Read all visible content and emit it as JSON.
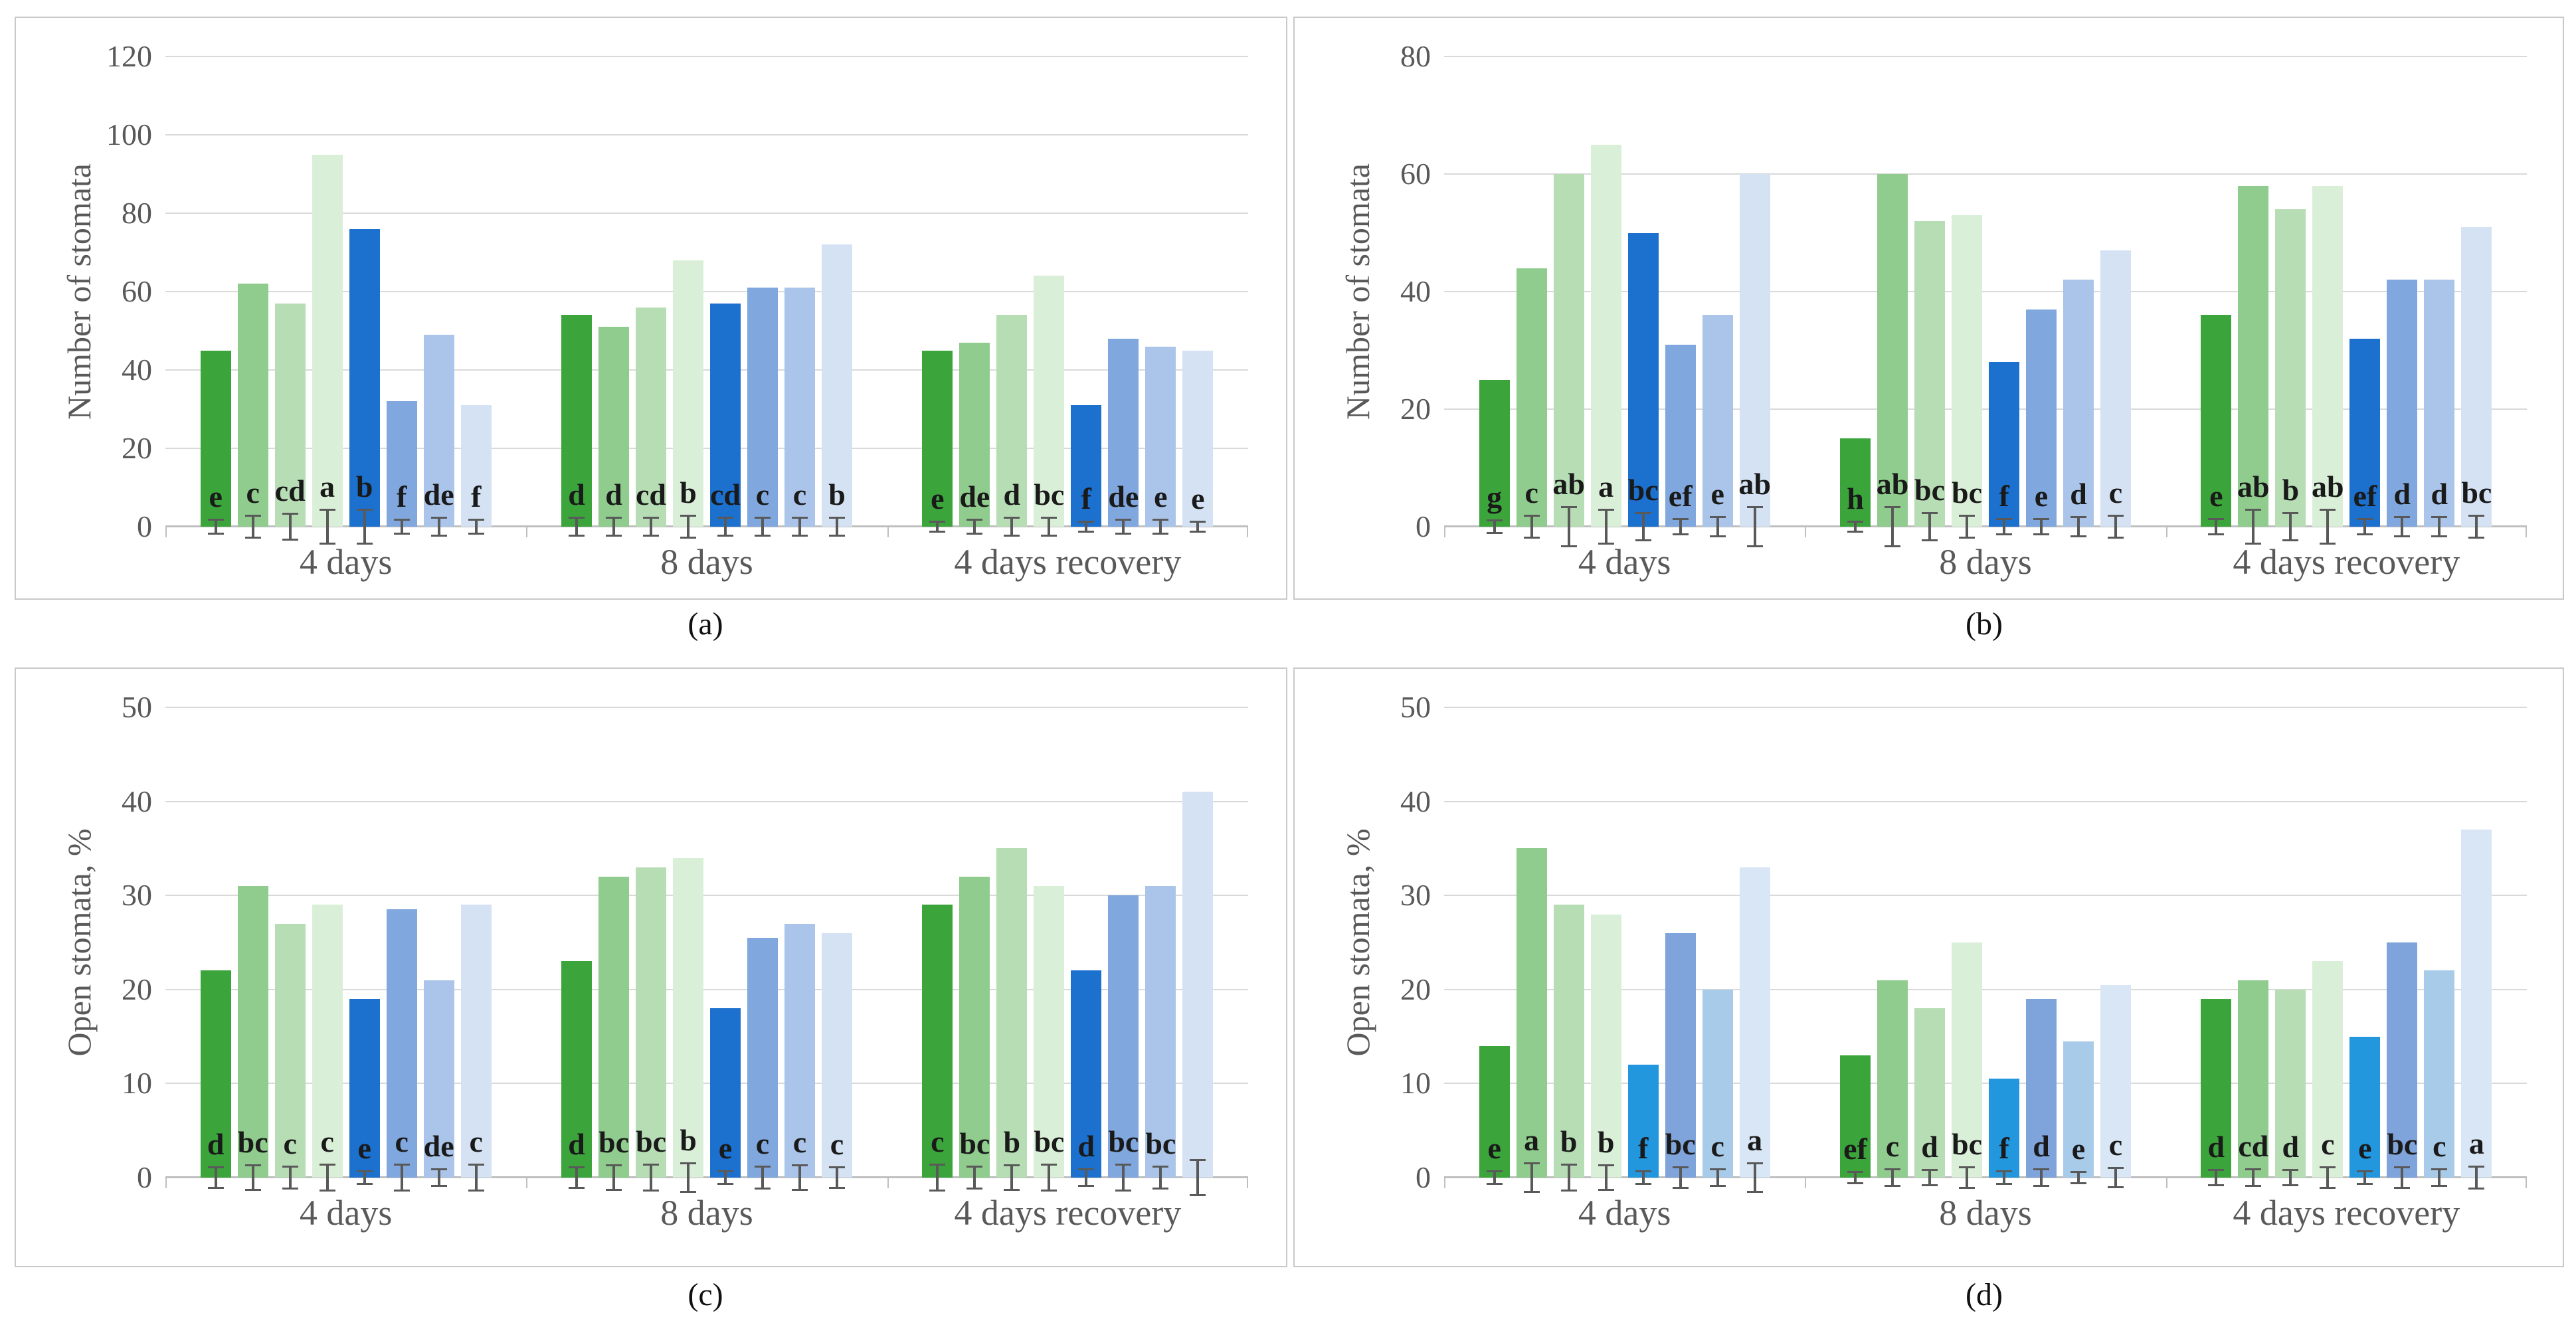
{
  "figure": {
    "background": "#ffffff",
    "grid_color": "#d9d9d9",
    "axis_color": "#bfbfbf",
    "error_bar_color": "#595959"
  },
  "chart_data": [
    {
      "id": "a",
      "caption": "(a)",
      "type": "bar",
      "ylabel": "Number of stomata",
      "xlabel": "",
      "ylim": [
        0,
        120
      ],
      "yticks": [
        0,
        20,
        40,
        60,
        80,
        100,
        120
      ],
      "grid": true,
      "legend": "none",
      "categories": [
        "4 days",
        "8 days",
        "4 days recovery"
      ],
      "bar_colors": [
        "#3ba53b",
        "#8fcc8d",
        "#b7ddb5",
        "#daefd8",
        "#1c70ce",
        "#80a8de",
        "#aac5e9",
        "#d4e2f4"
      ],
      "groups": [
        {
          "category": "4 days",
          "bars": [
            {
              "value": 45,
              "err": 2,
              "letter": "e"
            },
            {
              "value": 62,
              "err": 3,
              "letter": "c"
            },
            {
              "value": 57,
              "err": 3.5,
              "letter": "cd"
            },
            {
              "value": 95,
              "err": 4.5,
              "letter": "a"
            },
            {
              "value": 76,
              "err": 4.5,
              "letter": "b"
            },
            {
              "value": 32,
              "err": 2,
              "letter": "f"
            },
            {
              "value": 49,
              "err": 2.5,
              "letter": "de"
            },
            {
              "value": 31,
              "err": 2,
              "letter": "f"
            }
          ]
        },
        {
          "category": "8 days",
          "bars": [
            {
              "value": 54,
              "err": 2.5,
              "letter": "d"
            },
            {
              "value": 51,
              "err": 2.5,
              "letter": "d"
            },
            {
              "value": 56,
              "err": 2.5,
              "letter": "cd"
            },
            {
              "value": 68,
              "err": 3,
              "letter": "b"
            },
            {
              "value": 57,
              "err": 2.5,
              "letter": "cd"
            },
            {
              "value": 61,
              "err": 2.5,
              "letter": "c"
            },
            {
              "value": 61,
              "err": 2.5,
              "letter": "c"
            },
            {
              "value": 72,
              "err": 2.5,
              "letter": "b"
            }
          ]
        },
        {
          "category": "4 days recovery",
          "bars": [
            {
              "value": 45,
              "err": 1.5,
              "letter": "e"
            },
            {
              "value": 47,
              "err": 2,
              "letter": "de"
            },
            {
              "value": 54,
              "err": 2.5,
              "letter": "d"
            },
            {
              "value": 64,
              "err": 2.5,
              "letter": "bc"
            },
            {
              "value": 31,
              "err": 1.5,
              "letter": "f"
            },
            {
              "value": 48,
              "err": 2,
              "letter": "de"
            },
            {
              "value": 46,
              "err": 2,
              "letter": "e"
            },
            {
              "value": 45,
              "err": 1.5,
              "letter": "e"
            }
          ]
        }
      ]
    },
    {
      "id": "b",
      "caption": "(b)",
      "type": "bar",
      "ylabel": "Number of stomata",
      "xlabel": "",
      "ylim": [
        0,
        80
      ],
      "yticks": [
        0,
        20,
        40,
        60,
        80
      ],
      "grid": true,
      "legend": "none",
      "categories": [
        "4 days",
        "8 days",
        "4 days recovery"
      ],
      "bar_colors": [
        "#3ba53b",
        "#8fcc8d",
        "#b7ddb5",
        "#daefd8",
        "#1c70ce",
        "#80a8de",
        "#aac5e9",
        "#d4e2f4"
      ],
      "groups": [
        {
          "category": "4 days",
          "bars": [
            {
              "value": 25,
              "err": 1.2,
              "letter": "g"
            },
            {
              "value": 44,
              "err": 2,
              "letter": "c"
            },
            {
              "value": 60,
              "err": 3.5,
              "letter": "ab"
            },
            {
              "value": 65,
              "err": 3,
              "letter": "a"
            },
            {
              "value": 50,
              "err": 2.5,
              "letter": "bc"
            },
            {
              "value": 31,
              "err": 1.5,
              "letter": "ef"
            },
            {
              "value": 36,
              "err": 1.8,
              "letter": "e"
            },
            {
              "value": 60,
              "err": 3.5,
              "letter": "ab"
            }
          ]
        },
        {
          "category": "8 days",
          "bars": [
            {
              "value": 15,
              "err": 1,
              "letter": "h"
            },
            {
              "value": 60,
              "err": 3.5,
              "letter": "ab"
            },
            {
              "value": 52,
              "err": 2.5,
              "letter": "bc"
            },
            {
              "value": 53,
              "err": 2,
              "letter": "bc"
            },
            {
              "value": 28,
              "err": 1.5,
              "letter": "f"
            },
            {
              "value": 37,
              "err": 1.5,
              "letter": "e"
            },
            {
              "value": 42,
              "err": 1.8,
              "letter": "d"
            },
            {
              "value": 47,
              "err": 2,
              "letter": "c"
            }
          ]
        },
        {
          "category": "4 days recovery",
          "bars": [
            {
              "value": 36,
              "err": 1.5,
              "letter": "e"
            },
            {
              "value": 58,
              "err": 3,
              "letter": "ab"
            },
            {
              "value": 54,
              "err": 2.5,
              "letter": "b"
            },
            {
              "value": 58,
              "err": 3,
              "letter": "ab"
            },
            {
              "value": 32,
              "err": 1.5,
              "letter": "ef"
            },
            {
              "value": 42,
              "err": 1.8,
              "letter": "d"
            },
            {
              "value": 42,
              "err": 1.8,
              "letter": "d"
            },
            {
              "value": 51,
              "err": 2,
              "letter": "bc"
            }
          ]
        }
      ]
    },
    {
      "id": "c",
      "caption": "(c)",
      "type": "bar",
      "ylabel": "Open stomata, %",
      "xlabel": "",
      "ylim": [
        0,
        50
      ],
      "yticks": [
        0,
        10,
        20,
        30,
        40,
        50
      ],
      "grid": true,
      "legend": "none",
      "categories": [
        "4 days",
        "8 days",
        "4 days recovery"
      ],
      "bar_colors": [
        "#3ba53b",
        "#8fcc8d",
        "#b7ddb5",
        "#daefd8",
        "#1c70ce",
        "#80a8de",
        "#aac5e9",
        "#d4e2f4"
      ],
      "groups": [
        {
          "category": "4 days",
          "bars": [
            {
              "value": 22,
              "err": 1.2,
              "letter": "d"
            },
            {
              "value": 31,
              "err": 1.4,
              "letter": "bc"
            },
            {
              "value": 27,
              "err": 1.3,
              "letter": "c"
            },
            {
              "value": 29,
              "err": 1.5,
              "letter": "c"
            },
            {
              "value": 19,
              "err": 0.8,
              "letter": "e"
            },
            {
              "value": 28.5,
              "err": 1.5,
              "letter": "c"
            },
            {
              "value": 21,
              "err": 1,
              "letter": "de"
            },
            {
              "value": 29,
              "err": 1.5,
              "letter": "c"
            }
          ]
        },
        {
          "category": "8 days",
          "bars": [
            {
              "value": 23,
              "err": 1.2,
              "letter": "d"
            },
            {
              "value": 32,
              "err": 1.4,
              "letter": "bc"
            },
            {
              "value": 33,
              "err": 1.5,
              "letter": "bc"
            },
            {
              "value": 34,
              "err": 1.6,
              "letter": "b"
            },
            {
              "value": 18,
              "err": 0.8,
              "letter": "e"
            },
            {
              "value": 25.5,
              "err": 1.3,
              "letter": "c"
            },
            {
              "value": 27,
              "err": 1.4,
              "letter": "c"
            },
            {
              "value": 26,
              "err": 1.2,
              "letter": "c"
            }
          ]
        },
        {
          "category": "4 days recovery",
          "bars": [
            {
              "value": 29,
              "err": 1.5,
              "letter": "c"
            },
            {
              "value": 32,
              "err": 1.3,
              "letter": "bc"
            },
            {
              "value": 35,
              "err": 1.4,
              "letter": "b"
            },
            {
              "value": 31,
              "err": 1.5,
              "letter": "bc"
            },
            {
              "value": 22,
              "err": 1,
              "letter": "d"
            },
            {
              "value": 30,
              "err": 1.5,
              "letter": "bc"
            },
            {
              "value": 31,
              "err": 1.3,
              "letter": "bc"
            },
            {
              "value": 41,
              "err": 2,
              "letter": ""
            }
          ]
        }
      ]
    },
    {
      "id": "d",
      "caption": "(d)",
      "type": "bar",
      "ylabel": "Open stomata, %",
      "xlabel": "",
      "ylim": [
        0,
        50
      ],
      "yticks": [
        0,
        10,
        20,
        30,
        40,
        50
      ],
      "grid": true,
      "legend": "none",
      "categories": [
        "4 days",
        "8 days",
        "4 days recovery"
      ],
      "bar_colors": [
        "#3ba53b",
        "#8fcc8d",
        "#b7ddb5",
        "#daefd8",
        "#2397de",
        "#7fa3db",
        "#a9cbea",
        "#d8e6f5"
      ],
      "groups": [
        {
          "category": "4 days",
          "bars": [
            {
              "value": 14,
              "err": 0.8,
              "letter": "e"
            },
            {
              "value": 35,
              "err": 1.6,
              "letter": "a"
            },
            {
              "value": 29,
              "err": 1.5,
              "letter": "b"
            },
            {
              "value": 28,
              "err": 1.4,
              "letter": "b"
            },
            {
              "value": 12,
              "err": 0.8,
              "letter": "f"
            },
            {
              "value": 26,
              "err": 1.2,
              "letter": "bc"
            },
            {
              "value": 20,
              "err": 1,
              "letter": "c"
            },
            {
              "value": 33,
              "err": 1.6,
              "letter": "a"
            }
          ]
        },
        {
          "category": "8 days",
          "bars": [
            {
              "value": 13,
              "err": 0.7,
              "letter": "ef"
            },
            {
              "value": 21,
              "err": 1,
              "letter": "c"
            },
            {
              "value": 18,
              "err": 0.9,
              "letter": "d"
            },
            {
              "value": 25,
              "err": 1.2,
              "letter": "bc"
            },
            {
              "value": 10.5,
              "err": 0.8,
              "letter": "f"
            },
            {
              "value": 19,
              "err": 1,
              "letter": "d"
            },
            {
              "value": 14.5,
              "err": 0.7,
              "letter": "e"
            },
            {
              "value": 20.5,
              "err": 1.1,
              "letter": "c"
            }
          ]
        },
        {
          "category": "4 days recovery",
          "bars": [
            {
              "value": 19,
              "err": 0.9,
              "letter": "d"
            },
            {
              "value": 21,
              "err": 1,
              "letter": "cd"
            },
            {
              "value": 20,
              "err": 0.9,
              "letter": "d"
            },
            {
              "value": 23,
              "err": 1.2,
              "letter": "c"
            },
            {
              "value": 15,
              "err": 0.8,
              "letter": "e"
            },
            {
              "value": 25,
              "err": 1.2,
              "letter": "bc"
            },
            {
              "value": 22,
              "err": 1,
              "letter": "c"
            },
            {
              "value": 37,
              "err": 1.3,
              "letter": "a"
            }
          ]
        }
      ]
    }
  ]
}
